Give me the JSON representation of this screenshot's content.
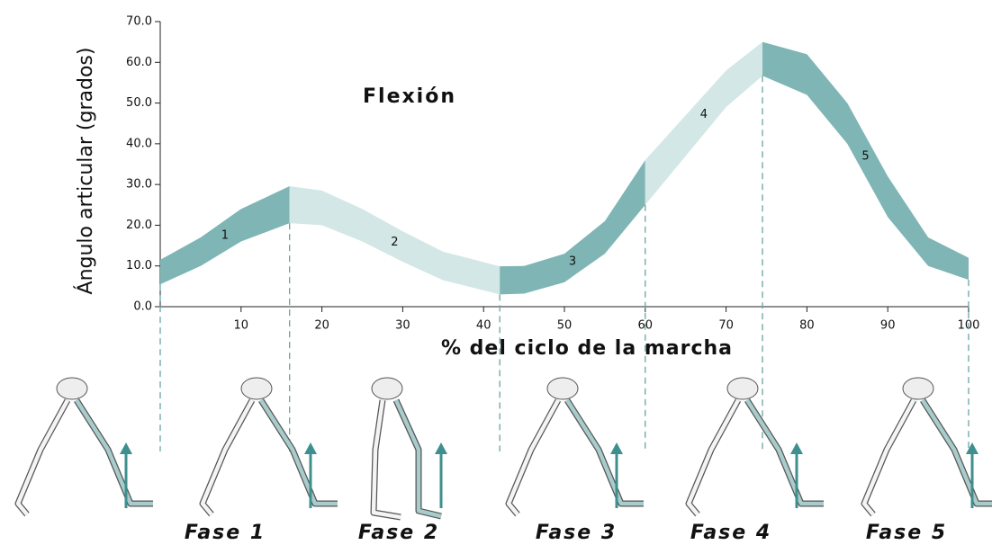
{
  "chart_data": {
    "type": "band",
    "title": "Flexión",
    "y_label": "Ángulo articular (grados)",
    "x_label": "% del ciclo de la marcha",
    "x": [
      0,
      5,
      10,
      16,
      20,
      25,
      30,
      35,
      42,
      45,
      50,
      55,
      60,
      65,
      70,
      74.5,
      80,
      85,
      90,
      95,
      100
    ],
    "upper": [
      11.5,
      17,
      24,
      29.6,
      28.5,
      24,
      18.5,
      13.5,
      9.9,
      10,
      13,
      21,
      36,
      47,
      58,
      65,
      62,
      50,
      32,
      17,
      12
    ],
    "lower": [
      5.5,
      10,
      16,
      20.5,
      20,
      16,
      11,
      6.5,
      3,
      3.2,
      6,
      13,
      25,
      37,
      49,
      56.7,
      52,
      40,
      22,
      10,
      6.6
    ],
    "phases": [
      {
        "label": "1",
        "caption": "Fase 1",
        "start": 0,
        "end": 16,
        "color": "#7fb5b5"
      },
      {
        "label": "2",
        "caption": "Fase 2",
        "start": 16,
        "end": 42,
        "color": "#d3e7e7"
      },
      {
        "label": "3",
        "caption": "Fase 3",
        "start": 42,
        "end": 60,
        "color": "#7fb5b5"
      },
      {
        "label": "4",
        "caption": "Fase 4",
        "start": 60,
        "end": 74.5,
        "color": "#d3e7e7"
      },
      {
        "label": "5",
        "caption": "Fase 5",
        "start": 74.5,
        "end": 100,
        "color": "#7fb5b5"
      }
    ],
    "xlim": [
      0,
      100
    ],
    "xticks": [
      10,
      20,
      30,
      40,
      50,
      60,
      70,
      80,
      90,
      100
    ],
    "ylim": [
      0,
      70
    ],
    "yticks": [
      {
        "value": 0,
        "label": "0.0"
      },
      {
        "value": 10,
        "label": "10.0"
      },
      {
        "value": 20,
        "label": "20.0"
      },
      {
        "value": 30,
        "label": "30.0"
      },
      {
        "value": 40,
        "label": "40.0"
      },
      {
        "value": 50,
        "label": "50.0"
      },
      {
        "value": 60,
        "label": "60.0"
      },
      {
        "value": 70,
        "label": "70.0"
      }
    ]
  }
}
